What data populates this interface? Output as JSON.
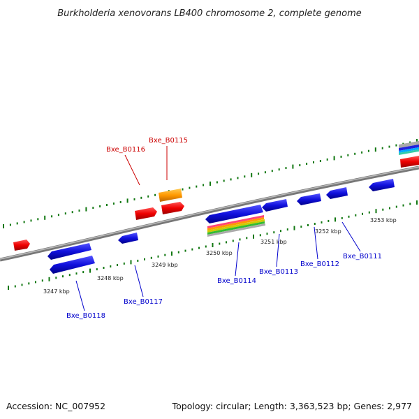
{
  "title": "Burkholderia xenovorans LB400 chromosome 2, complete genome",
  "footer": {
    "accession": "Accession: NC_007952",
    "summary": "Topology: circular; Length: 3,363,523 bp; Genes: 2,977"
  },
  "ticks": [
    "3247 kbp",
    "3248 kbp",
    "3249 kbp",
    "3250 kbp",
    "3251 kbp",
    "3252 kbp",
    "3253 kbp"
  ],
  "gene_labels": [
    {
      "text": "Bxe_B0116",
      "strand": "forward"
    },
    {
      "text": "Bxe_B0115",
      "strand": "forward"
    },
    {
      "text": "Bxe_B0118",
      "strand": "reverse"
    },
    {
      "text": "Bxe_B0117",
      "strand": "reverse"
    },
    {
      "text": "Bxe_B0114",
      "strand": "reverse"
    },
    {
      "text": "Bxe_B0113",
      "strand": "reverse"
    },
    {
      "text": "Bxe_B0112",
      "strand": "reverse"
    },
    {
      "text": "Bxe_B0111",
      "strand": "reverse"
    }
  ],
  "colors": {
    "forward_label": "#cc0000",
    "reverse_label": "#0000cc",
    "forward_gene": "#ee0000",
    "reverse_gene": "#1010dd",
    "orf": "#ff9900",
    "backbone": "#888888",
    "dots": "#117711"
  }
}
